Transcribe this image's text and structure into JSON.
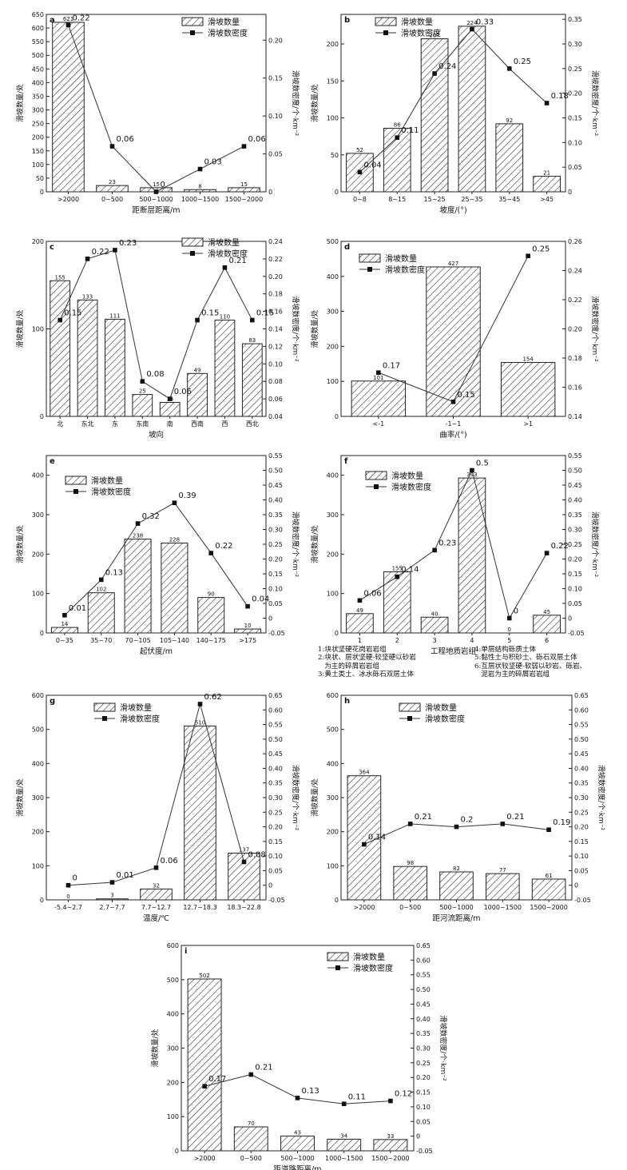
{
  "legend": {
    "count_label": "滑坡数量",
    "density_label": "滑坡数密度"
  },
  "charts": [
    {
      "panel": "a",
      "chart_data": {
        "type": "bar+line",
        "categories": [
          ">2000",
          "0~500",
          "500~1000",
          "1000~1500",
          "1500~2000"
        ],
        "series": [
          {
            "name": "滑坡数量",
            "values": [
              621,
              23,
              15,
              8,
              15
            ]
          },
          {
            "name": "滑坡数密度",
            "values": [
              0.22,
              0.06,
              0,
              0.03,
              0.06
            ]
          }
        ],
        "xlabel": "距断层距离/m",
        "ylabel": "滑坡数量/处",
        "y2label": "滑坡数密度/个·km⁻²",
        "ylim": [
          0,
          650
        ],
        "y_ticks": [
          0,
          50,
          100,
          150,
          200,
          250,
          300,
          350,
          400,
          450,
          500,
          550,
          600,
          650
        ],
        "y2lim": [
          0,
          0.234
        ],
        "y2_ticks": [
          "0",
          "0.05",
          "0.10",
          "0.15",
          "0.20"
        ],
        "legend_position": "top-right"
      }
    },
    {
      "panel": "b",
      "chart_data": {
        "type": "bar+line",
        "categories": [
          "0~8",
          "8~15",
          "15~25",
          "25~35",
          "35~45",
          ">45"
        ],
        "series": [
          {
            "name": "滑坡数量",
            "values": [
              52,
              86,
              207,
              224,
              92,
              21
            ]
          },
          {
            "name": "滑坡数密度",
            "values": [
              0.04,
              0.11,
              0.24,
              0.33,
              0.25,
              0.18
            ]
          }
        ],
        "xlabel": "坡度/(°)",
        "ylabel": "滑坡数量/处",
        "y2label": "滑坡数密度/个·km⁻²",
        "ylim": [
          0,
          240
        ],
        "y_ticks": [
          0,
          50,
          100,
          150,
          200
        ],
        "y2lim": [
          0,
          0.36
        ],
        "y2_ticks": [
          "0",
          "0.05",
          "0.10",
          "0.15",
          "0.20",
          "0.25",
          "0.30",
          "0.35"
        ],
        "legend_position": "top-right"
      }
    },
    {
      "panel": "c",
      "chart_data": {
        "type": "bar+line",
        "categories": [
          "北",
          "东北",
          "东",
          "东南",
          "南",
          "西南",
          "西",
          "西北"
        ],
        "series": [
          {
            "name": "滑坡数量",
            "values": [
              155,
              133,
              111,
              25,
              16,
              49,
              110,
              83
            ]
          },
          {
            "name": "滑坡数密度",
            "values": [
              0.15,
              0.22,
              0.23,
              0.08,
              0.06,
              0.15,
              0.21,
              0.15
            ]
          }
        ],
        "xlabel": "坡向",
        "ylabel": "滑坡数量/处",
        "y2label": "滑坡数密度/个·km⁻²",
        "ylim": [
          0,
          200
        ],
        "y_ticks": [
          0,
          100,
          200
        ],
        "y2lim": [
          0.04,
          0.24
        ],
        "y2_ticks": [
          "0.04",
          "0.06",
          "0.08",
          "0.10",
          "0.12",
          "0.14",
          "0.16",
          "0.18",
          "0.20",
          "0.22",
          "0.24"
        ],
        "legend_position": "top-right"
      }
    },
    {
      "panel": "d",
      "chart_data": {
        "type": "bar+line",
        "categories": [
          "<-1",
          "-1~1",
          ">1"
        ],
        "series": [
          {
            "name": "滑坡数量",
            "values": [
              101,
              427,
              154
            ]
          },
          {
            "name": "滑坡数密度",
            "values": [
              0.17,
              0.15,
              0.25
            ]
          }
        ],
        "xlabel": "曲率/(°)",
        "ylabel": "滑坡数量/处",
        "y2label": "滑坡数密度/个·km⁻²",
        "ylim": [
          0,
          500
        ],
        "y_ticks": [
          0,
          100,
          200,
          300,
          400,
          500
        ],
        "y2lim": [
          0.14,
          0.26
        ],
        "y2_ticks": [
          "0.14",
          "0.16",
          "0.18",
          "0.20",
          "0.22",
          "0.24",
          "0.26"
        ],
        "legend_position": "top-left"
      }
    },
    {
      "panel": "e",
      "chart_data": {
        "type": "bar+line",
        "categories": [
          "0~35",
          "35~70",
          "70~105",
          "105~140",
          "140~175",
          ">175"
        ],
        "series": [
          {
            "name": "滑坡数量",
            "values": [
              14,
              102,
              238,
              228,
              90,
              10
            ]
          },
          {
            "name": "滑坡数密度",
            "values": [
              0.01,
              0.13,
              0.32,
              0.39,
              0.22,
              0.04
            ]
          }
        ],
        "xlabel": "起伏度/m",
        "ylabel": "滑坡数量/处",
        "y2label": "滑坡数密度/个·km⁻²",
        "ylim": [
          0,
          450
        ],
        "y_ticks": [
          0,
          100,
          200,
          300,
          400
        ],
        "y2lim": [
          -0.05,
          0.55
        ],
        "y2_ticks": [
          "-0.05",
          "0",
          "0.05",
          "0.10",
          "0.15",
          "0.20",
          "0.25",
          "0.30",
          "0.35",
          "0.40",
          "0.45",
          "0.50",
          "0.55"
        ],
        "legend_position": "top-left"
      }
    },
    {
      "panel": "f",
      "chart_data": {
        "type": "bar+line",
        "categories": [
          "1",
          "2",
          "3",
          "4",
          "5",
          "6"
        ],
        "series": [
          {
            "name": "滑坡数量",
            "values": [
              49,
              155,
              40,
              393,
              0,
              45
            ]
          },
          {
            "name": "滑坡数密度",
            "values": [
              0.06,
              0.14,
              0.23,
              0.5,
              0,
              0.22
            ]
          }
        ],
        "xlabel": "工程地质岩组",
        "ylabel": "滑坡数量/处",
        "y2label": "滑坡数密度/个·km⁻²",
        "ylim": [
          0,
          450
        ],
        "y_ticks": [
          0,
          100,
          200,
          300,
          400
        ],
        "y2lim": [
          -0.05,
          0.55
        ],
        "y2_ticks": [
          "-0.05",
          "0",
          "0.05",
          "0.10",
          "0.15",
          "0.20",
          "0.25",
          "0.30",
          "0.35",
          "0.40",
          "0.45",
          "0.50",
          "0.55"
        ],
        "legend_position": "top-left"
      }
    },
    {
      "panel": "g",
      "chart_data": {
        "type": "bar+line",
        "categories": [
          "-5.4~2.7",
          "2.7~7.7",
          "7.7~12.7",
          "12.7~18.3",
          "18.3~22.8"
        ],
        "series": [
          {
            "name": "滑坡数量",
            "values": [
              0,
              3,
              32,
              510,
              137
            ]
          },
          {
            "name": "滑坡数密度",
            "values": [
              0,
              0.01,
              0.06,
              0.62,
              0.08
            ]
          }
        ],
        "xlabel": "温度/℃",
        "ylabel": "滑坡数量/处",
        "y2label": "滑坡数密度/个·km⁻²",
        "ylim": [
          0,
          600
        ],
        "y_ticks": [
          0,
          100,
          200,
          300,
          400,
          500,
          600
        ],
        "y2lim": [
          -0.05,
          0.65
        ],
        "y2_ticks": [
          "-0.05",
          "0",
          "0.05",
          "0.10",
          "0.15",
          "0.20",
          "0.25",
          "0.30",
          "0.35",
          "0.40",
          "0.45",
          "0.50",
          "0.55",
          "0.60",
          "0.65"
        ],
        "legend_position": "top-center"
      }
    },
    {
      "panel": "h",
      "chart_data": {
        "type": "bar+line",
        "categories": [
          ">2000",
          "0~500",
          "500~1000",
          "1000~1500",
          "1500~2000"
        ],
        "series": [
          {
            "name": "滑坡数量",
            "values": [
              364,
              98,
              82,
              77,
              61
            ]
          },
          {
            "name": "滑坡数密度",
            "values": [
              0.14,
              0.21,
              0.2,
              0.21,
              0.19
            ]
          }
        ],
        "xlabel": "距河流距离/m",
        "ylabel": "滑坡数量/处",
        "y2label": "滑坡数密度/个·km⁻²",
        "ylim": [
          0,
          600
        ],
        "y_ticks": [
          0,
          100,
          200,
          300,
          400,
          500,
          600
        ],
        "y2lim": [
          -0.05,
          0.65
        ],
        "y2_ticks": [
          "-0.05",
          "0",
          "0.05",
          "0.10",
          "0.15",
          "0.20",
          "0.25",
          "0.30",
          "0.35",
          "0.40",
          "0.45",
          "0.50",
          "0.55",
          "0.60",
          "0.65"
        ],
        "legend_position": "top-center"
      }
    },
    {
      "panel": "i",
      "chart_data": {
        "type": "bar+line",
        "categories": [
          ">2000",
          "0~500",
          "500~1000",
          "1000~1500",
          "1500~2000"
        ],
        "series": [
          {
            "name": "滑坡数量",
            "values": [
              502,
              70,
              43,
              34,
              33
            ]
          },
          {
            "name": "滑坡数密度",
            "values": [
              0.17,
              0.21,
              0.13,
              0.11,
              0.12
            ]
          }
        ],
        "xlabel": "距道路距离/m",
        "ylabel": "滑坡数量/处",
        "y2label": "滑坡数密度/个·km⁻²",
        "ylim": [
          0,
          600
        ],
        "y_ticks": [
          0,
          100,
          200,
          300,
          400,
          500,
          600
        ],
        "y2lim": [
          -0.05,
          0.65
        ],
        "y2_ticks": [
          "-0.05",
          "0",
          "0.05",
          "0.10",
          "0.15",
          "0.20",
          "0.25",
          "0.30",
          "0.35",
          "0.40",
          "0.45",
          "0.50",
          "0.55",
          "0.60",
          "0.65"
        ],
        "legend_position": "top-center"
      }
    }
  ],
  "rock_group_notes": {
    "left": [
      "1:块状坚硬花岗岩岩组",
      "2:块状、层状坚硬-较坚硬以砂岩",
      "   为主的碎屑岩岩组",
      "3:黄土类土、冰水砾石双层土体"
    ],
    "right": [
      "4:单层结构砾质土体",
      "5:黏性土与积砂土、砾石双层土体",
      "6:互层状较坚硬-软弱以砂岩、砾岩、",
      "   泥岩为主的碎屑岩岩组"
    ]
  }
}
